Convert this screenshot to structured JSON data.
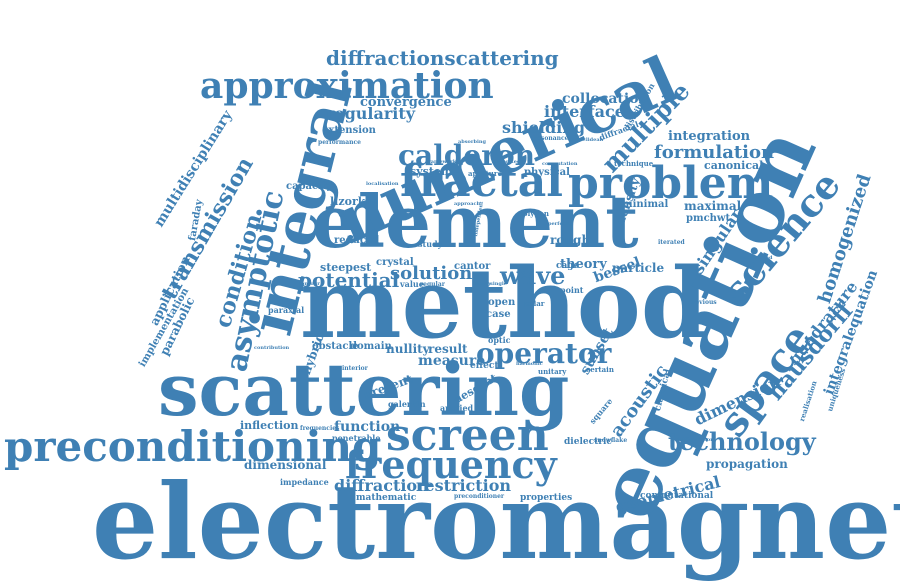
{
  "color": "#3f80b4",
  "words": [
    {
      "text": "electromagnetic"
    },
    {
      "text": "method"
    },
    {
      "text": "equation"
    },
    {
      "text": "element"
    },
    {
      "text": "numerical"
    },
    {
      "text": "scattering"
    },
    {
      "text": "integral"
    },
    {
      "text": "fractal"
    },
    {
      "text": "problem"
    },
    {
      "text": "preconditioning"
    },
    {
      "text": "screen"
    },
    {
      "text": "frequency"
    },
    {
      "text": "approximation"
    },
    {
      "text": "space"
    },
    {
      "text": "science"
    },
    {
      "text": "asymptotic"
    },
    {
      "text": "calderon"
    },
    {
      "text": "operator"
    },
    {
      "text": "technology"
    },
    {
      "text": "hausdorff"
    },
    {
      "text": "multiple"
    },
    {
      "text": "wave"
    },
    {
      "text": "condition"
    },
    {
      "text": "transmission"
    },
    {
      "text": "diffractionscattering"
    },
    {
      "text": "potential"
    },
    {
      "text": "solution"
    },
    {
      "text": "formulation"
    },
    {
      "text": "homogenized"
    },
    {
      "text": "acoustic"
    },
    {
      "text": "geometrical"
    },
    {
      "text": "restriction"
    },
    {
      "text": "diffraction"
    },
    {
      "text": "dimension"
    },
    {
      "text": "quadrature"
    },
    {
      "text": "integralequation"
    },
    {
      "text": "singular"
    },
    {
      "text": "shielding"
    },
    {
      "text": "interface"
    },
    {
      "text": "regularity"
    },
    {
      "text": "convergence"
    },
    {
      "text": "collocation"
    },
    {
      "text": "integration"
    },
    {
      "text": "multidisciplinary"
    },
    {
      "text": "measure"
    },
    {
      "text": "function"
    },
    {
      "text": "dimensional"
    },
    {
      "text": "propagation"
    },
    {
      "text": "inflection"
    },
    {
      "text": "bessel"
    },
    {
      "text": "theory"
    },
    {
      "text": "particle"
    },
    {
      "text": "density"
    },
    {
      "text": "maximal"
    },
    {
      "text": "pmchwt"
    },
    {
      "text": "canonical"
    },
    {
      "text": "lizorkin"
    },
    {
      "text": "capacity"
    },
    {
      "text": "reduced"
    },
    {
      "text": "steepest"
    },
    {
      "text": "crystal"
    },
    {
      "text": "cantor"
    },
    {
      "text": "rough"
    },
    {
      "text": "minimal"
    },
    {
      "text": "physical"
    },
    {
      "text": "system"
    },
    {
      "text": "extension"
    },
    {
      "text": "performance"
    },
    {
      "text": "nullity"
    },
    {
      "text": "result"
    },
    {
      "text": "obstacle"
    },
    {
      "text": "domain"
    },
    {
      "text": "present"
    },
    {
      "text": "subset"
    },
    {
      "text": "descent"
    },
    {
      "text": "galerkin"
    },
    {
      "text": "applied"
    },
    {
      "text": "mathematic"
    },
    {
      "text": "properties"
    },
    {
      "text": "computational"
    },
    {
      "text": "impedance"
    },
    {
      "text": "dielectric"
    },
    {
      "text": "preconditioner"
    },
    {
      "text": "penetrable"
    },
    {
      "text": "frequencies"
    },
    {
      "text": "application"
    },
    {
      "text": "parabolic"
    },
    {
      "text": "implementation"
    },
    {
      "text": "faraday"
    },
    {
      "text": "hybrid"
    },
    {
      "text": "paraxial"
    },
    {
      "text": "uniqueness"
    },
    {
      "text": "realisation"
    },
    {
      "text": "previous"
    },
    {
      "text": "technique"
    },
    {
      "text": "diffractal"
    },
    {
      "text": "distribution"
    },
    {
      "text": "resonance"
    },
    {
      "text": "absorbing"
    },
    {
      "text": "framework"
    },
    {
      "text": "localisation"
    },
    {
      "text": "aperture"
    },
    {
      "text": "supported"
    },
    {
      "text": "polygon"
    },
    {
      "text": "study"
    },
    {
      "text": "value"
    },
    {
      "text": "case"
    },
    {
      "text": "open"
    },
    {
      "text": "point"
    },
    {
      "text": "cage"
    },
    {
      "text": "effect"
    },
    {
      "text": "unitary"
    },
    {
      "text": "certain"
    },
    {
      "text": "harmonic"
    },
    {
      "text": "classical"
    },
    {
      "text": "square"
    },
    {
      "text": "snowflake"
    },
    {
      "text": "polar"
    },
    {
      "text": "optic"
    },
    {
      "text": "iterated"
    },
    {
      "text": "interior"
    },
    {
      "text": "analysis"
    },
    {
      "text": "contour"
    },
    {
      "text": "accelerated"
    },
    {
      "text": "regular"
    },
    {
      "text": "empty"
    },
    {
      "text": "single"
    },
    {
      "text": "euclidean"
    },
    {
      "text": "computation"
    },
    {
      "text": "approach"
    },
    {
      "text": "independent"
    },
    {
      "text": "contribution"
    },
    {
      "text": "configuration"
    },
    {
      "text": "perfectly"
    }
  ]
}
